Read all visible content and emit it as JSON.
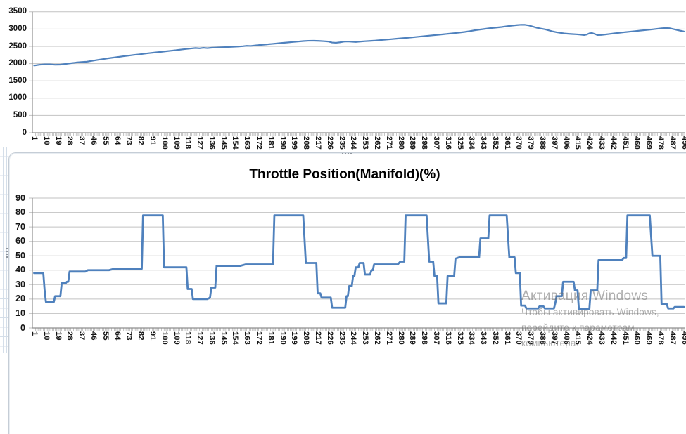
{
  "watermark": {
    "line1": "Активация Windows",
    "line2": "Чтобы активировать Windows,",
    "line3": "перейдите к параметрам",
    "line4": "компьютера."
  },
  "colors": {
    "series_blue": "#4f81bd",
    "gridline": "#c2c2c2",
    "axis": "#8f8f8f",
    "tick": "#9a9a9a",
    "frame": "#c5cdd6",
    "sheet_grid": "#d4dee9",
    "label_text": "#151515"
  },
  "chart_data": [
    {
      "name": "top-line-chart",
      "type": "line",
      "title": "",
      "xlabel": "",
      "ylabel": "",
      "xlim": [
        1,
        496
      ],
      "ylim": [
        0,
        3500
      ],
      "grid": true,
      "legend": "none",
      "yticks": [
        0,
        500,
        1000,
        1500,
        2000,
        2500,
        3000,
        3500
      ],
      "x_tick_labels": [
        "1",
        "10",
        "19",
        "28",
        "37",
        "46",
        "55",
        "64",
        "73",
        "82",
        "91",
        "100",
        "109",
        "118",
        "127",
        "136",
        "145",
        "154",
        "163",
        "172",
        "181",
        "190",
        "199",
        "208",
        "217",
        "226",
        "235",
        "244",
        "253",
        "262",
        "271",
        "280",
        "289",
        "298",
        "307",
        "316",
        "325",
        "334",
        "343",
        "352",
        "361",
        "370",
        "379",
        "388",
        "397",
        "406",
        "415",
        "424",
        "433",
        "442",
        "451",
        "460",
        "469",
        "478",
        "487",
        "496"
      ],
      "points": [
        [
          1,
          1945
        ],
        [
          5,
          1968
        ],
        [
          9,
          1980
        ],
        [
          13,
          1980
        ],
        [
          17,
          1968
        ],
        [
          21,
          1972
        ],
        [
          25,
          1992
        ],
        [
          29,
          2012
        ],
        [
          33,
          2032
        ],
        [
          37,
          2047
        ],
        [
          41,
          2055
        ],
        [
          45,
          2080
        ],
        [
          49,
          2105
        ],
        [
          53,
          2128
        ],
        [
          57,
          2152
        ],
        [
          61,
          2172
        ],
        [
          65,
          2192
        ],
        [
          69,
          2214
        ],
        [
          73,
          2232
        ],
        [
          77,
          2252
        ],
        [
          81,
          2268
        ],
        [
          85,
          2288
        ],
        [
          89,
          2305
        ],
        [
          93,
          2322
        ],
        [
          97,
          2338
        ],
        [
          101,
          2355
        ],
        [
          105,
          2372
        ],
        [
          109,
          2388
        ],
        [
          113,
          2408
        ],
        [
          117,
          2425
        ],
        [
          121,
          2440
        ],
        [
          124,
          2452
        ],
        [
          127,
          2443
        ],
        [
          130,
          2458
        ],
        [
          133,
          2448
        ],
        [
          136,
          2460
        ],
        [
          140,
          2466
        ],
        [
          144,
          2473
        ],
        [
          148,
          2479
        ],
        [
          152,
          2488
        ],
        [
          156,
          2494
        ],
        [
          160,
          2504
        ],
        [
          163,
          2516
        ],
        [
          166,
          2511
        ],
        [
          170,
          2529
        ],
        [
          174,
          2543
        ],
        [
          178,
          2556
        ],
        [
          182,
          2570
        ],
        [
          186,
          2584
        ],
        [
          190,
          2599
        ],
        [
          194,
          2612
        ],
        [
          198,
          2626
        ],
        [
          202,
          2639
        ],
        [
          206,
          2652
        ],
        [
          210,
          2661
        ],
        [
          214,
          2663
        ],
        [
          218,
          2658
        ],
        [
          222,
          2649
        ],
        [
          225,
          2640
        ],
        [
          228,
          2611
        ],
        [
          231,
          2603
        ],
        [
          234,
          2617
        ],
        [
          237,
          2636
        ],
        [
          240,
          2641
        ],
        [
          243,
          2634
        ],
        [
          246,
          2626
        ],
        [
          249,
          2637
        ],
        [
          253,
          2649
        ],
        [
          257,
          2658
        ],
        [
          261,
          2667
        ],
        [
          265,
          2681
        ],
        [
          269,
          2694
        ],
        [
          273,
          2707
        ],
        [
          277,
          2721
        ],
        [
          281,
          2734
        ],
        [
          285,
          2747
        ],
        [
          289,
          2761
        ],
        [
          293,
          2776
        ],
        [
          297,
          2791
        ],
        [
          301,
          2806
        ],
        [
          305,
          2821
        ],
        [
          309,
          2836
        ],
        [
          313,
          2851
        ],
        [
          317,
          2866
        ],
        [
          321,
          2883
        ],
        [
          325,
          2899
        ],
        [
          329,
          2917
        ],
        [
          333,
          2940
        ],
        [
          337,
          2967
        ],
        [
          341,
          2988
        ],
        [
          345,
          3008
        ],
        [
          349,
          3028
        ],
        [
          353,
          3044
        ],
        [
          357,
          3059
        ],
        [
          361,
          3080
        ],
        [
          365,
          3100
        ],
        [
          369,
          3115
        ],
        [
          372,
          3124
        ],
        [
          375,
          3122
        ],
        [
          378,
          3104
        ],
        [
          381,
          3070
        ],
        [
          384,
          3038
        ],
        [
          387,
          3014
        ],
        [
          390,
          2994
        ],
        [
          393,
          2964
        ],
        [
          396,
          2932
        ],
        [
          399,
          2908
        ],
        [
          402,
          2890
        ],
        [
          405,
          2874
        ],
        [
          408,
          2863
        ],
        [
          411,
          2856
        ],
        [
          414,
          2849
        ],
        [
          417,
          2840
        ],
        [
          420,
          2827
        ],
        [
          422,
          2843
        ],
        [
          424,
          2876
        ],
        [
          426,
          2886
        ],
        [
          428,
          2860
        ],
        [
          430,
          2828
        ],
        [
          433,
          2830
        ],
        [
          436,
          2843
        ],
        [
          439,
          2857
        ],
        [
          443,
          2876
        ],
        [
          447,
          2893
        ],
        [
          451,
          2910
        ],
        [
          455,
          2926
        ],
        [
          459,
          2941
        ],
        [
          463,
          2957
        ],
        [
          467,
          2971
        ],
        [
          471,
          2987
        ],
        [
          475,
          3004
        ],
        [
          479,
          3021
        ],
        [
          482,
          3030
        ],
        [
          485,
          3024
        ],
        [
          488,
          3000
        ],
        [
          491,
          2972
        ],
        [
          494,
          2947
        ],
        [
          496,
          2931
        ]
      ]
    },
    {
      "name": "throttle-position-chart",
      "type": "line",
      "title": "Throttle Position(Manifold)(%)",
      "xlabel": "",
      "ylabel": "",
      "xlim": [
        1,
        496
      ],
      "ylim": [
        0,
        90
      ],
      "grid": true,
      "legend": "none",
      "yticks": [
        0,
        10,
        20,
        30,
        40,
        50,
        60,
        70,
        80,
        90
      ],
      "x_tick_labels": [
        "1",
        "10",
        "19",
        "28",
        "37",
        "46",
        "55",
        "64",
        "73",
        "82",
        "91",
        "100",
        "109",
        "118",
        "127",
        "136",
        "145",
        "154",
        "163",
        "172",
        "181",
        "190",
        "199",
        "208",
        "217",
        "226",
        "235",
        "244",
        "253",
        "262",
        "271",
        "280",
        "289",
        "298",
        "307",
        "316",
        "325",
        "334",
        "343",
        "352",
        "361",
        "370",
        "379",
        "388",
        "397",
        "406",
        "415",
        "424",
        "433",
        "442",
        "451",
        "460",
        "469",
        "478",
        "487",
        "496"
      ],
      "points": [
        [
          1,
          38
        ],
        [
          8,
          38
        ],
        [
          9,
          26
        ],
        [
          10,
          18
        ],
        [
          16,
          18
        ],
        [
          17,
          22
        ],
        [
          21,
          22
        ],
        [
          22,
          31
        ],
        [
          25,
          31
        ],
        [
          26,
          32
        ],
        [
          27,
          32
        ],
        [
          28,
          39
        ],
        [
          40,
          39
        ],
        [
          42,
          40
        ],
        [
          58,
          40
        ],
        [
          62,
          41
        ],
        [
          83,
          41
        ],
        [
          84,
          78
        ],
        [
          99,
          78
        ],
        [
          100,
          42
        ],
        [
          117,
          42
        ],
        [
          118,
          27
        ],
        [
          121,
          27
        ],
        [
          122,
          20
        ],
        [
          133,
          20
        ],
        [
          135,
          21
        ],
        [
          136,
          28
        ],
        [
          139,
          28
        ],
        [
          140,
          43
        ],
        [
          158,
          43
        ],
        [
          162,
          44
        ],
        [
          183,
          44
        ],
        [
          184,
          78
        ],
        [
          206,
          78
        ],
        [
          208,
          45
        ],
        [
          216,
          45
        ],
        [
          217,
          24
        ],
        [
          219,
          24
        ],
        [
          220,
          21
        ],
        [
          227,
          21
        ],
        [
          228,
          14
        ],
        [
          238,
          14
        ],
        [
          239,
          22
        ],
        [
          240,
          22
        ],
        [
          241,
          29
        ],
        [
          243,
          29
        ],
        [
          244,
          36
        ],
        [
          245,
          36
        ],
        [
          246,
          42
        ],
        [
          248,
          42
        ],
        [
          249,
          45
        ],
        [
          252,
          45
        ],
        [
          253,
          37
        ],
        [
          257,
          37
        ],
        [
          258,
          40
        ],
        [
          259,
          40
        ],
        [
          260,
          44
        ],
        [
          278,
          44
        ],
        [
          280,
          46
        ],
        [
          283,
          46
        ],
        [
          284,
          78
        ],
        [
          300,
          78
        ],
        [
          302,
          46
        ],
        [
          305,
          46
        ],
        [
          306,
          36
        ],
        [
          308,
          36
        ],
        [
          309,
          17
        ],
        [
          315,
          17
        ],
        [
          316,
          36
        ],
        [
          321,
          36
        ],
        [
          322,
          48
        ],
        [
          325,
          49
        ],
        [
          340,
          49
        ],
        [
          341,
          62
        ],
        [
          347,
          62
        ],
        [
          348,
          78
        ],
        [
          361,
          78
        ],
        [
          363,
          49
        ],
        [
          367,
          49
        ],
        [
          368,
          38
        ],
        [
          371,
          38
        ],
        [
          372,
          15.5
        ],
        [
          375,
          15.5
        ],
        [
          376,
          13.5
        ],
        [
          385,
          13.5
        ],
        [
          386,
          15
        ],
        [
          389,
          15
        ],
        [
          390,
          13.5
        ],
        [
          397,
          13.5
        ],
        [
          398,
          17
        ],
        [
          399,
          22
        ],
        [
          403,
          22
        ],
        [
          404,
          32
        ],
        [
          412,
          32
        ],
        [
          413,
          26
        ],
        [
          415,
          26
        ],
        [
          416,
          13
        ],
        [
          424,
          13
        ],
        [
          425,
          26
        ],
        [
          430,
          26
        ],
        [
          431,
          47
        ],
        [
          449,
          47
        ],
        [
          450,
          48.5
        ],
        [
          452,
          48.5
        ],
        [
          453,
          78
        ],
        [
          470,
          78
        ],
        [
          472,
          50
        ],
        [
          478,
          50
        ],
        [
          479,
          16.5
        ],
        [
          483,
          16.5
        ],
        [
          484,
          13.5
        ],
        [
          488,
          13.5
        ],
        [
          489,
          14.5
        ],
        [
          496,
          14.5
        ]
      ]
    }
  ]
}
